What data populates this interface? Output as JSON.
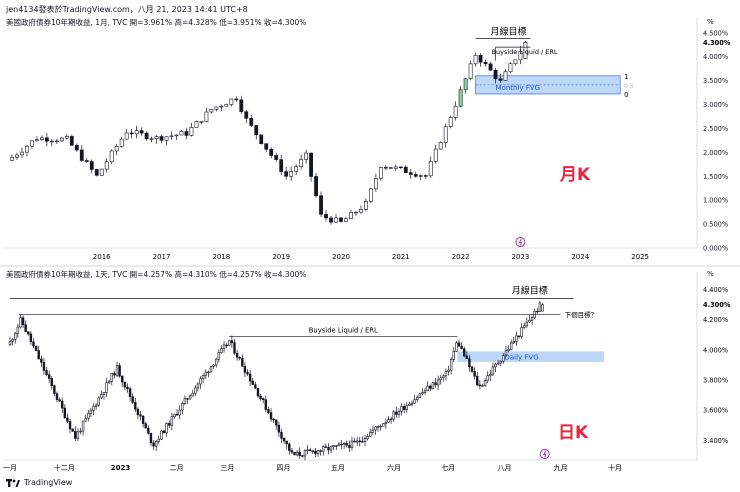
{
  "header": {
    "text": "jen4134發表於TradingView.com，八月 21, 2023 14:41 UTC+8"
  },
  "top_pane": {
    "legend": "美國政府債券10年期收益, 1月, TVC  開=3.961%  高=4.328%  低=3.951%  收=4.300%",
    "unit_label": "%",
    "big_label": "月K",
    "target_label": "月線目標",
    "erl_label": "Buyside Liquid / ERL",
    "fvg_label": "Monthly FVG",
    "fvg_marker_top": "1",
    "fvg_marker_mid": "0.5",
    "fvg_marker_bottom": "0",
    "price_axis": [
      "4.500%",
      "4.000%",
      "3.500%",
      "3.000%",
      "2.500%",
      "2.000%",
      "1.500%",
      "1.000%",
      "0.500%",
      "0.000%"
    ],
    "current_price": "4.300%",
    "time_axis": [
      "2016",
      "2017",
      "2018",
      "2019",
      "2020",
      "2021",
      "2022",
      "2023",
      "2024",
      "2025"
    ],
    "event_icon": "lightning-icon"
  },
  "bottom_pane": {
    "legend": "美國政府債券10年期收益, 1天, TVC  開=4.257%  高=4.310%  低=4.257%  收=4.300%",
    "unit_label": "%",
    "big_label": "日K",
    "target_label": "月線目標",
    "next_target_label": "下個目標？",
    "erl_label": "Buyside Liquid / ERL",
    "fvg_label": "Daily FVG",
    "price_axis": [
      "4.400%",
      "4.200%",
      "4.000%",
      "3.800%",
      "3.600%",
      "3.400%"
    ],
    "current_price": "4.300%",
    "time_axis": [
      "一月",
      "十二月",
      "2023",
      "二月",
      "三月",
      "四月",
      "五月",
      "六月",
      "七月",
      "八月",
      "九月",
      "十月"
    ],
    "event_icon": "lightning-icon"
  },
  "footer": {
    "brand": "TradingView"
  },
  "colors": {
    "up": "#ffffff",
    "down": "#131722",
    "fvg": "#bcd7f7",
    "accent": "#e8263d",
    "event": "#9c27b0"
  },
  "chart_data": [
    {
      "type": "candlestick",
      "title": "美國政府債券10年期收益, 1月, TVC",
      "x_range": [
        "2015-01",
        "2025-12"
      ],
      "ylim": [
        0.0,
        4.6
      ],
      "close_path": [
        {
          "x": "2015-01",
          "y": 1.9
        },
        {
          "x": "2015-06",
          "y": 2.3
        },
        {
          "x": "2015-12",
          "y": 2.27
        },
        {
          "x": "2016-06",
          "y": 1.5
        },
        {
          "x": "2016-12",
          "y": 2.44
        },
        {
          "x": "2017-06",
          "y": 2.3
        },
        {
          "x": "2017-12",
          "y": 2.4
        },
        {
          "x": "2018-05",
          "y": 2.9
        },
        {
          "x": "2018-10",
          "y": 3.15
        },
        {
          "x": "2018-12",
          "y": 2.68
        },
        {
          "x": "2019-08",
          "y": 1.5
        },
        {
          "x": "2019-12",
          "y": 1.92
        },
        {
          "x": "2020-03",
          "y": 0.67
        },
        {
          "x": "2020-07",
          "y": 0.53
        },
        {
          "x": "2020-12",
          "y": 0.92
        },
        {
          "x": "2021-03",
          "y": 1.74
        },
        {
          "x": "2021-12",
          "y": 1.51
        },
        {
          "x": "2022-06",
          "y": 3.01
        },
        {
          "x": "2022-10",
          "y": 4.05
        },
        {
          "x": "2023-03",
          "y": 3.47
        },
        {
          "x": "2023-08",
          "y": 4.3
        }
      ],
      "fvg_zone": [
        3.22,
        3.6
      ],
      "buyside_level": 4.2,
      "target_level": 4.38
    },
    {
      "type": "candlestick",
      "title": "美國政府債券10年期收益, 1天, TVC",
      "x_range": [
        "2022-11",
        "2023-10"
      ],
      "ylim": [
        3.27,
        4.45
      ],
      "close_path": [
        {
          "x": "2022-11-01",
          "y": 4.05
        },
        {
          "x": "2022-11-07",
          "y": 4.2
        },
        {
          "x": "2022-12-07",
          "y": 3.42
        },
        {
          "x": "2022-12-30",
          "y": 3.88
        },
        {
          "x": "2023-01-19",
          "y": 3.37
        },
        {
          "x": "2023-03-02",
          "y": 4.06
        },
        {
          "x": "2023-04-06",
          "y": 3.3
        },
        {
          "x": "2023-05-11",
          "y": 3.38
        },
        {
          "x": "2023-06-30",
          "y": 3.84
        },
        {
          "x": "2023-07-06",
          "y": 4.06
        },
        {
          "x": "2023-07-18",
          "y": 3.75
        },
        {
          "x": "2023-08-21",
          "y": 4.3
        }
      ],
      "fvg_zone": [
        3.92,
        3.99
      ],
      "buyside_level": 4.09,
      "target_level": 4.34
    }
  ]
}
